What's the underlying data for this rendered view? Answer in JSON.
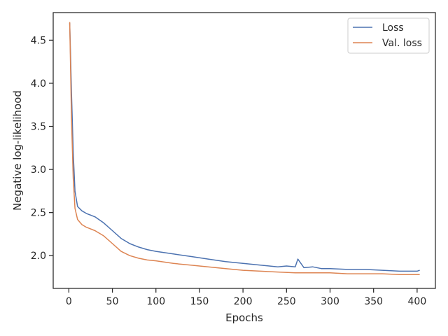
{
  "chart_data": {
    "type": "line",
    "title": "",
    "xlabel": "Epochs",
    "ylabel": "Negative log-likelihood",
    "xlim": [
      -18,
      421
    ],
    "ylim": [
      1.62,
      4.82
    ],
    "xticks": [
      0,
      50,
      100,
      150,
      200,
      250,
      300,
      350,
      400
    ],
    "xtick_labels": [
      "0",
      "50",
      "100",
      "150",
      "200",
      "250",
      "300",
      "350",
      "400"
    ],
    "yticks": [
      2.0,
      2.5,
      3.0,
      3.5,
      4.0,
      4.5
    ],
    "ytick_labels": [
      "2.0",
      "2.5",
      "3.0",
      "3.5",
      "4.0",
      "4.5"
    ],
    "grid": false,
    "legend_position": "top-right",
    "series": [
      {
        "name": "Loss",
        "color": "#4c72b0",
        "x": [
          1,
          3,
          5,
          7,
          10,
          15,
          20,
          30,
          40,
          50,
          60,
          70,
          80,
          90,
          100,
          120,
          140,
          160,
          180,
          200,
          220,
          240,
          250,
          260,
          263,
          270,
          280,
          290,
          300,
          320,
          340,
          360,
          380,
          400,
          403
        ],
        "y": [
          4.7,
          3.9,
          3.2,
          2.75,
          2.57,
          2.52,
          2.49,
          2.45,
          2.38,
          2.29,
          2.2,
          2.14,
          2.1,
          2.07,
          2.05,
          2.02,
          1.99,
          1.96,
          1.93,
          1.91,
          1.89,
          1.87,
          1.88,
          1.87,
          1.96,
          1.86,
          1.87,
          1.85,
          1.85,
          1.84,
          1.84,
          1.83,
          1.82,
          1.82,
          1.83
        ]
      },
      {
        "name": "Val. loss",
        "color": "#dd8452",
        "x": [
          1,
          3,
          5,
          7,
          10,
          15,
          20,
          30,
          40,
          50,
          60,
          70,
          80,
          90,
          100,
          120,
          140,
          160,
          180,
          200,
          220,
          240,
          260,
          280,
          300,
          320,
          340,
          360,
          380,
          400,
          403
        ],
        "y": [
          4.71,
          3.6,
          2.9,
          2.55,
          2.42,
          2.36,
          2.33,
          2.29,
          2.23,
          2.14,
          2.05,
          2.0,
          1.97,
          1.95,
          1.94,
          1.91,
          1.89,
          1.87,
          1.85,
          1.83,
          1.82,
          1.81,
          1.8,
          1.8,
          1.8,
          1.79,
          1.79,
          1.79,
          1.78,
          1.78,
          1.78
        ]
      }
    ]
  }
}
